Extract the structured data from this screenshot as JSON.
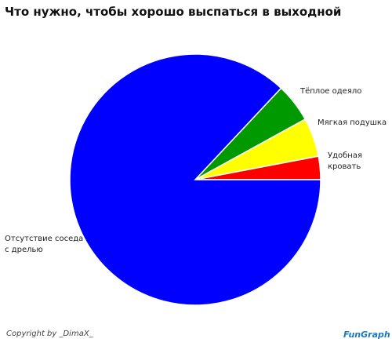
{
  "chart_data": {
    "type": "pie",
    "title": "Что нужно, чтобы хорошо выспаться в выходной",
    "categories": [
      "Удобная кровать",
      "Мягкая подушка",
      "Тёплое одеяло",
      "Отсутствие соседа\nс дрелью"
    ],
    "values": [
      3,
      5,
      5,
      87
    ],
    "colors": [
      "#ff0000",
      "#ffff00",
      "#009900",
      "#0000ff"
    ]
  },
  "footer": {
    "copyright": "Copyright by _DimaX_",
    "logo": "FunGraph"
  }
}
